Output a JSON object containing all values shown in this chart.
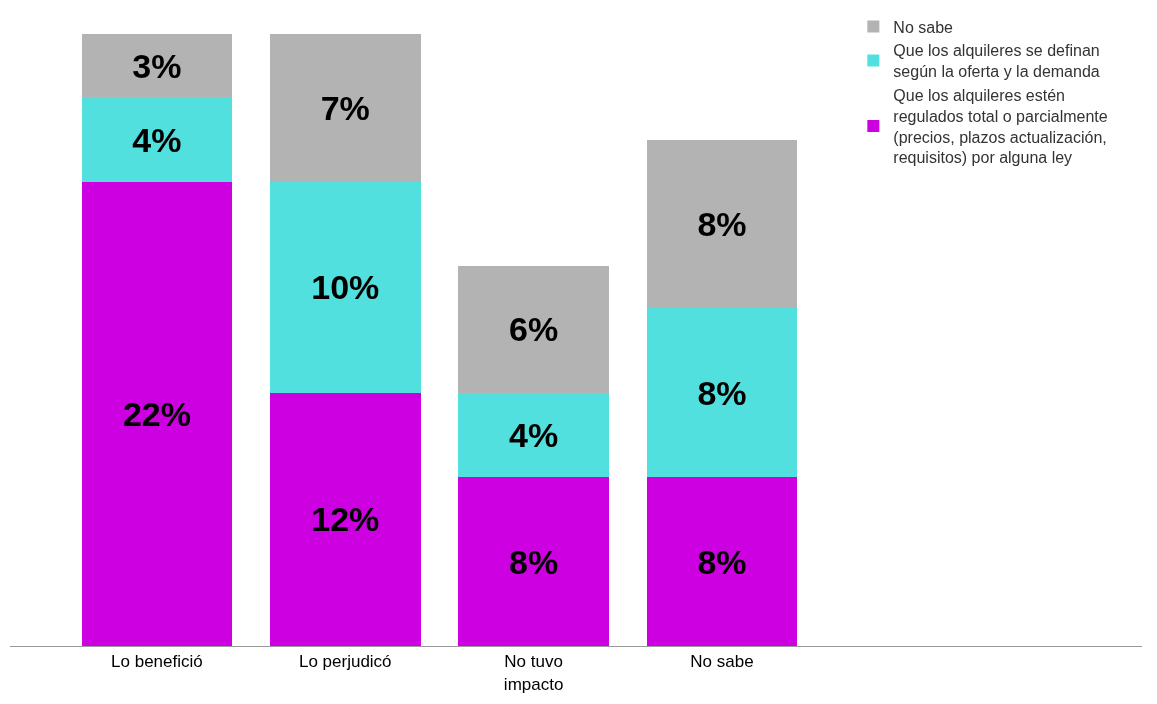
{
  "chart_data": {
    "type": "bar",
    "stacked": true,
    "categories": [
      "Lo benefició",
      "Lo perjudicó",
      "No tuvo impacto",
      "No sabe"
    ],
    "series": [
      {
        "name": "Que los alquileres estén regulados total o parcialmente (precios, plazos actualización, requisitos) por alguna ley",
        "color": "#cc00e0",
        "values": [
          22,
          12,
          8,
          8
        ],
        "value_labels": [
          "22%",
          "12%",
          "8%",
          "8%"
        ]
      },
      {
        "name": "Que los alquileres se definan según la oferta y la demanda",
        "color": "#52e0de",
        "values": [
          4,
          10,
          4,
          8
        ],
        "value_labels": [
          "4%",
          "10%",
          "4%",
          "8%"
        ]
      },
      {
        "name": "No sabe",
        "color": "#b3b3b3",
        "values": [
          3,
          7,
          6,
          8
        ],
        "value_labels": [
          "3%",
          "7%",
          "6%",
          "8%"
        ]
      }
    ],
    "legend": "top right",
    "tick_labels": "x"
  }
}
